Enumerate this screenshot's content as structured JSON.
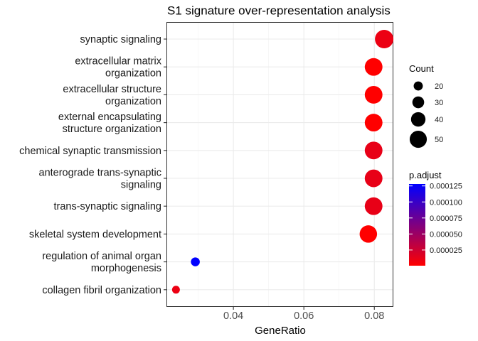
{
  "chart_data": {
    "type": "scatter",
    "title": "S1 signature over-representation analysis",
    "xlabel": "GeneRatio",
    "ylabel": "",
    "xlim": [
      0.0212,
      0.0852
    ],
    "xticks": [
      0.04,
      0.06,
      0.08
    ],
    "xtick_labels": [
      "0.04",
      "0.06",
      "0.08"
    ],
    "grid": true,
    "categories": [
      [
        "synaptic signaling"
      ],
      [
        "extracellular matrix",
        "organization"
      ],
      [
        "extracellular structure",
        "organization"
      ],
      [
        "external encapsulating",
        "structure organization"
      ],
      [
        "chemical synaptic transmission"
      ],
      [
        "anterograde trans-synaptic",
        "signaling"
      ],
      [
        "trans-synaptic signaling"
      ],
      [
        "skeletal system development"
      ],
      [
        "regulation of animal organ",
        "morphogenesis"
      ],
      [
        "collagen fibril organization"
      ]
    ],
    "points": [
      {
        "gene_ratio": 0.0828,
        "count": 55,
        "p_adjust": 1e-05
      },
      {
        "gene_ratio": 0.0798,
        "count": 52,
        "p_adjust": 5e-07
      },
      {
        "gene_ratio": 0.0798,
        "count": 52,
        "p_adjust": 5e-07
      },
      {
        "gene_ratio": 0.0798,
        "count": 52,
        "p_adjust": 5e-07
      },
      {
        "gene_ratio": 0.0798,
        "count": 52,
        "p_adjust": 1.2e-05
      },
      {
        "gene_ratio": 0.0798,
        "count": 52,
        "p_adjust": 1.2e-05
      },
      {
        "gene_ratio": 0.0798,
        "count": 52,
        "p_adjust": 1.2e-05
      },
      {
        "gene_ratio": 0.0783,
        "count": 51,
        "p_adjust": 5e-07
      },
      {
        "gene_ratio": 0.0292,
        "count": 19,
        "p_adjust": 0.000128
      },
      {
        "gene_ratio": 0.0237,
        "count": 15,
        "p_adjust": 1e-05
      }
    ],
    "legend": {
      "position": "right",
      "size_title": "Count",
      "size_values": [
        20,
        30,
        40,
        50
      ],
      "size_labels": [
        "20",
        "30",
        "40",
        "50"
      ],
      "color_title": "p.adjust",
      "color_labels": [
        "0.000125",
        "0.000100",
        "0.000075",
        "0.000050",
        "0.000025"
      ],
      "color_values": [
        0.000125,
        0.0001,
        7.5e-05,
        5e-05,
        2.5e-05
      ],
      "color_range": [
        5e-07,
        0.000128
      ],
      "color_low": "#FF0000",
      "color_high": "#0000FF"
    }
  }
}
